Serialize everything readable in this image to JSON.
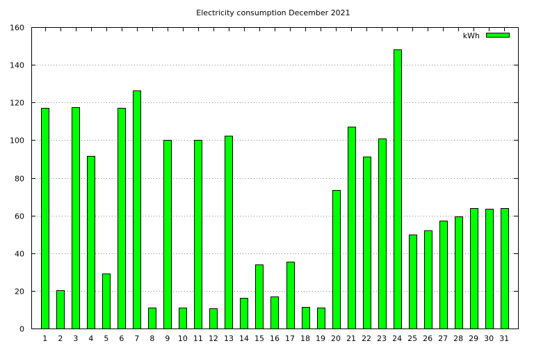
{
  "chart_data": {
    "type": "bar",
    "title": "Electricity consumption December 2021",
    "xlabel": "",
    "ylabel": "",
    "ylim": [
      0,
      160
    ],
    "y_ticks": [
      0,
      20,
      40,
      60,
      80,
      100,
      120,
      140,
      160
    ],
    "grid": true,
    "legend_position": "top-right",
    "categories": [
      "1",
      "2",
      "3",
      "4",
      "5",
      "6",
      "7",
      "8",
      "9",
      "10",
      "11",
      "12",
      "13",
      "14",
      "15",
      "16",
      "17",
      "18",
      "19",
      "20",
      "21",
      "22",
      "23",
      "24",
      "25",
      "26",
      "27",
      "28",
      "29",
      "30",
      "31"
    ],
    "series": [
      {
        "name": "kWh",
        "color": "#00ff00",
        "values": [
          117,
          20.5,
          117.5,
          91.5,
          29.3,
          117,
          126.5,
          11.2,
          100,
          11.2,
          100.3,
          10.8,
          102.3,
          16.3,
          34,
          17,
          35.3,
          11.5,
          11.2,
          73.5,
          107.3,
          91.3,
          100.8,
          148.3,
          50,
          52,
          57.3,
          59.5,
          63.8,
          63.5,
          64
        ]
      }
    ]
  }
}
